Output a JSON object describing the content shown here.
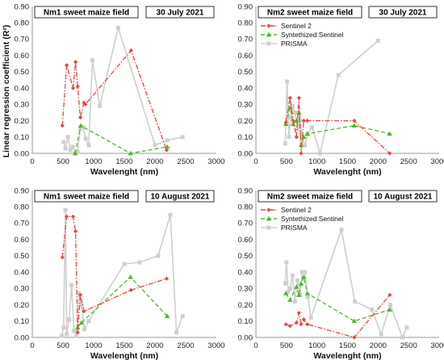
{
  "figure": {
    "ylabel_shared": "Linear regression coefficient (R²)",
    "series_styles": {
      "Sentinel 2": {
        "color": "#e8473f",
        "marker": "diamond",
        "dash": "dashdot"
      },
      "Syntethized Sentinel": {
        "color": "#4db82f",
        "marker": "triangle",
        "dash": "dashed"
      },
      "PRISMA": {
        "color": "#cfcfcf",
        "marker": "square",
        "dash": "solid"
      }
    }
  },
  "chart_data": [
    {
      "type": "line",
      "panel": "top-left",
      "title": "Nm1 sweet maize field",
      "date": "30 July 2021",
      "xlabel": "Wavelenght (nm)",
      "ylabel": "Linear regression coefficient (R²)",
      "xlim": [
        0,
        3000
      ],
      "ylim": [
        0,
        0.9
      ],
      "xticks": [
        0,
        500,
        1000,
        1500,
        2000,
        2500,
        3000
      ],
      "yticks": [
        0.0,
        0.1,
        0.2,
        0.3,
        0.4,
        0.5,
        0.6,
        0.7,
        0.8,
        0.9
      ],
      "ytick_labels": [
        "0.00",
        "0.10",
        "0.20",
        "0.30",
        "0.40",
        "0.50",
        "0.60",
        "0.70",
        "0.80",
        "0.90"
      ],
      "legend": [],
      "series": [
        {
          "name": "Sentinel 2",
          "x": [
            490,
            560,
            665,
            705,
            740,
            783,
            842,
            865,
            1610,
            2190
          ],
          "y": [
            0.17,
            0.54,
            0.4,
            0.56,
            0.41,
            0.22,
            0.31,
            0.3,
            0.63,
            0.02
          ]
        },
        {
          "name": "Syntethized Sentinel",
          "x": [
            700,
            790,
            1600,
            2200
          ],
          "y": [
            0.0,
            0.17,
            0.0,
            0.04
          ]
        },
        {
          "name": "PRISMA",
          "x": [
            510,
            540,
            580,
            620,
            660,
            700,
            740,
            780,
            830,
            870,
            920,
            980,
            1100,
            1400,
            2000,
            2200,
            2450
          ],
          "y": [
            0.07,
            0.03,
            0.1,
            0.02,
            0.04,
            0.0,
            0.01,
            0.15,
            0.16,
            0.09,
            0.05,
            0.57,
            0.29,
            0.77,
            0.05,
            0.08,
            0.1
          ]
        }
      ]
    },
    {
      "type": "line",
      "panel": "top-right",
      "title": "Nm2 sweet maize field",
      "date": "30 July 2021",
      "xlabel": "Wavelenght (nm)",
      "ylabel": "",
      "xlim": [
        0,
        3000
      ],
      "ylim": [
        0,
        0.9
      ],
      "xticks": [
        0,
        500,
        1000,
        1500,
        2000,
        2500,
        3000
      ],
      "yticks": [
        0.0,
        0.1,
        0.2,
        0.3,
        0.4,
        0.5,
        0.6,
        0.7,
        0.8,
        0.9
      ],
      "ytick_labels": [
        "0.00",
        "0.10",
        "0.20",
        "0.30",
        "0.40",
        "0.50",
        "0.60",
        "0.70",
        "0.80",
        "0.90"
      ],
      "legend": [
        "Sentinel 2",
        "Syntethized Sentinel",
        "PRISMA"
      ],
      "series": [
        {
          "name": "Sentinel 2",
          "x": [
            490,
            560,
            610,
            665,
            705,
            740,
            783,
            842,
            1610,
            2190
          ],
          "y": [
            0.19,
            0.34,
            0.2,
            0.1,
            0.34,
            0.0,
            0.2,
            0.2,
            0.2,
            0.0
          ]
        },
        {
          "name": "Syntethized Sentinel",
          "x": [
            490,
            560,
            610,
            665,
            705,
            740,
            783,
            842,
            1610,
            2190
          ],
          "y": [
            0.18,
            0.28,
            0.18,
            0.2,
            0.25,
            0.05,
            0.1,
            0.12,
            0.17,
            0.12
          ]
        },
        {
          "name": "PRISMA",
          "x": [
            480,
            510,
            540,
            570,
            600,
            640,
            680,
            720,
            760,
            800,
            850,
            920,
            1050,
            1350,
            2000
          ],
          "y": [
            0.06,
            0.44,
            0.1,
            0.22,
            0.29,
            0.25,
            0.15,
            0.2,
            0.1,
            0.05,
            0.12,
            0.16,
            0.0,
            0.48,
            0.69
          ]
        }
      ]
    },
    {
      "type": "line",
      "panel": "bottom-left",
      "title": "Nm1 sweet maize field",
      "date": "10 August 2021",
      "xlabel": "Wavelenght (nm)",
      "ylabel": "Linear regression coefficient (R²)",
      "xlim": [
        0,
        3000
      ],
      "ylim": [
        0,
        0.9
      ],
      "xticks": [
        0,
        500,
        1000,
        1500,
        2000,
        2500,
        3000
      ],
      "yticks": [
        0.0,
        0.1,
        0.2,
        0.3,
        0.4,
        0.5,
        0.6,
        0.7,
        0.8,
        0.9
      ],
      "ytick_labels": [
        "0.00",
        "0.10",
        "0.20",
        "0.30",
        "0.40",
        "0.50",
        "0.60",
        "0.70",
        "0.80",
        "0.90"
      ],
      "legend": [],
      "series": [
        {
          "name": "Sentinel 2",
          "x": [
            490,
            560,
            665,
            705,
            740,
            783,
            842,
            1610,
            2190
          ],
          "y": [
            0.49,
            0.74,
            0.74,
            0.65,
            0.03,
            0.26,
            0.16,
            0.29,
            0.36
          ]
        },
        {
          "name": "Syntethized Sentinel",
          "x": [
            740,
            800,
            1600,
            2200
          ],
          "y": [
            0.06,
            0.09,
            0.37,
            0.13
          ]
        },
        {
          "name": "PRISMA",
          "x": [
            480,
            510,
            540,
            560,
            600,
            640,
            680,
            720,
            760,
            800,
            850,
            920,
            1500,
            1750,
            2050,
            2250,
            2350,
            2450
          ],
          "y": [
            0.01,
            0.06,
            0.78,
            0.02,
            0.11,
            0.32,
            0.04,
            0.01,
            0.27,
            0.2,
            0.05,
            0.1,
            0.45,
            0.46,
            0.5,
            0.75,
            0.03,
            0.13
          ]
        }
      ]
    },
    {
      "type": "line",
      "panel": "bottom-right",
      "title": "Nm2 sweet maize field",
      "date": "10 August 2021",
      "xlabel": "Wavelenght (nm)",
      "ylabel": "",
      "xlim": [
        0,
        3000
      ],
      "ylim": [
        0,
        0.9
      ],
      "xticks": [
        0,
        500,
        1000,
        1500,
        2000,
        2500,
        3000
      ],
      "yticks": [
        0.0,
        0.1,
        0.2,
        0.3,
        0.4,
        0.5,
        0.6,
        0.7,
        0.8,
        0.9
      ],
      "ytick_labels": [
        "0.00",
        "0.10",
        "0.20",
        "0.30",
        "0.40",
        "0.50",
        "0.60",
        "0.70",
        "0.80",
        "0.90"
      ],
      "legend": [
        "Sentinel 2",
        "Syntethized Sentinel",
        "PRISMA"
      ],
      "series": [
        {
          "name": "Sentinel 2",
          "x": [
            490,
            560,
            665,
            705,
            740,
            783,
            842,
            1610,
            2190
          ],
          "y": [
            0.08,
            0.07,
            0.09,
            0.15,
            0.08,
            0.11,
            0.08,
            0.0,
            0.26
          ]
        },
        {
          "name": "Syntethized Sentinel",
          "x": [
            490,
            560,
            665,
            705,
            740,
            783,
            842,
            1610,
            2190
          ],
          "y": [
            0.27,
            0.23,
            0.31,
            0.26,
            0.33,
            0.37,
            0.27,
            0.1,
            0.17
          ]
        },
        {
          "name": "PRISMA",
          "x": [
            480,
            500,
            530,
            560,
            600,
            640,
            680,
            720,
            760,
            800,
            850,
            900,
            1400,
            1620,
            1900,
            2050,
            2200,
            2400,
            2470
          ],
          "y": [
            0.33,
            0.46,
            0.28,
            0.3,
            0.38,
            0.22,
            0.35,
            0.26,
            0.4,
            0.4,
            0.25,
            0.12,
            0.66,
            0.22,
            0.17,
            0.02,
            0.2,
            0.0,
            0.06
          ]
        }
      ]
    }
  ]
}
